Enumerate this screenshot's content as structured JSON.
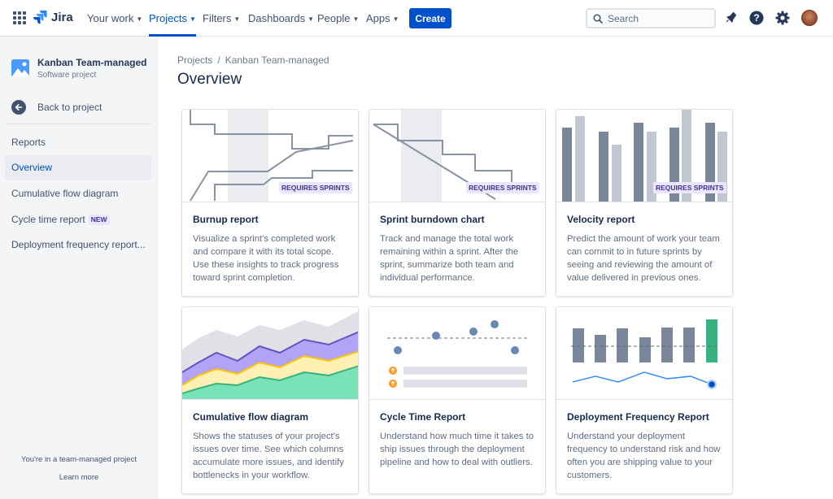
{
  "topnav": {
    "logo_text": "Jira",
    "items": [
      {
        "label": "Your work"
      },
      {
        "label": "Projects"
      },
      {
        "label": "Filters"
      },
      {
        "label": "Dashboards"
      },
      {
        "label": "People"
      },
      {
        "label": "Apps"
      }
    ],
    "active_item": "Projects",
    "create_label": "Create",
    "search_placeholder": "Search",
    "icons": [
      "app-switcher-icon",
      "jira-logo-icon",
      "search-icon",
      "notifications-icon",
      "help-icon",
      "settings-icon"
    ]
  },
  "sidebar": {
    "project_name": "Kanban Team-managed",
    "project_type": "Software project",
    "back_label": "Back to project",
    "section_heading": "Reports",
    "items": [
      {
        "label": "Overview",
        "selected": true
      },
      {
        "label": "Cumulative flow diagram"
      },
      {
        "label": "Cycle time report",
        "badge": "NEW"
      },
      {
        "label": "Deployment frequency report..."
      }
    ],
    "footer_text": "You're in a team-managed project",
    "footer_link": "Learn more"
  },
  "main": {
    "breadcrumb": [
      "Projects",
      "Kanban Team-managed"
    ],
    "title": "Overview",
    "requires_badge": "REQUIRES SPRINTS",
    "cards": [
      {
        "title": "Burnup report",
        "description": "Visualize a sprint's completed work and compare it with its total scope. Use these insights to track progress toward sprint completion."
      },
      {
        "title": "Sprint burndown chart",
        "description": "Track and manage the total work remaining within a sprint. After the sprint, summarize both team and individual performance."
      },
      {
        "title": "Velocity report",
        "description": "Predict the amount of work your team can commit to in future sprints by seeing and reviewing the amount of value delivered in previous ones."
      },
      {
        "title": "Cumulative flow diagram",
        "description": "Shows the statuses of your project's issues over time. See which columns accumulate more issues, and identify bottlenecks in your workflow."
      },
      {
        "title": "Cycle Time Report",
        "description": "Understand how much time it takes to ship issues through the deployment pipeline and how to deal with outliers."
      },
      {
        "title": "Deployment Frequency Report",
        "description": "Understand your deployment frequency to understand risk and how often you are shipping value to your customers."
      }
    ]
  },
  "colors": {
    "brand": "#0052cc",
    "text": "#172b4d",
    "subtle": "#5e6c84",
    "badge_bg": "#eae6ff",
    "badge_text": "#403294",
    "cfd_gray": "#c1c7d0",
    "cfd_purple": "#b3a3f7",
    "cfd_yellow": "#fff0b3",
    "cfd_green": "#79e2b8",
    "deploy_green": "#36b37e"
  }
}
